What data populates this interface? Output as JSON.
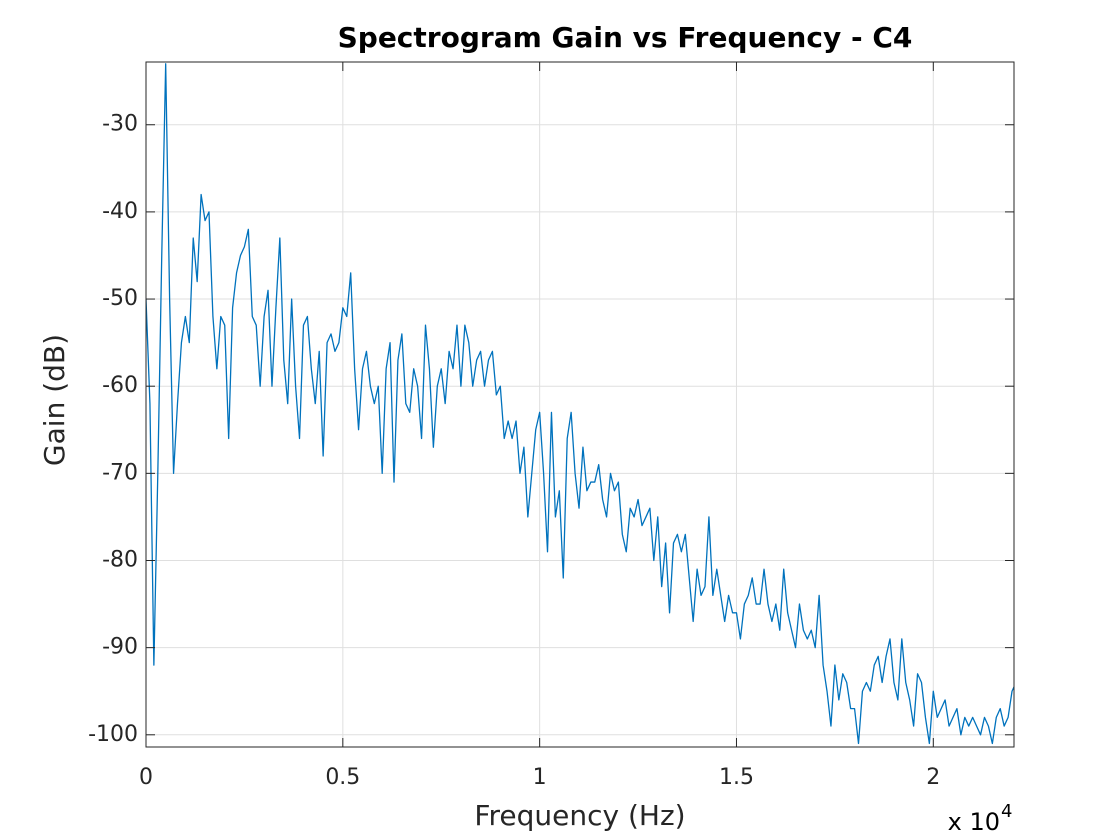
{
  "chart_data": {
    "type": "line",
    "title": "Spectrogram Gain vs Frequency - C4",
    "x_label": "Frequency (Hz)",
    "y_label": "Gain (dB)",
    "x_multiplier": {
      "base": "x 10",
      "exponent": "4"
    },
    "color": "#0072bd",
    "grid": true,
    "xlim": [
      0,
      22050
    ],
    "ylim": [
      -101.4,
      -22.8
    ],
    "xticks": [
      0,
      {
        "value": 5000,
        "label": "0.5"
      },
      {
        "value": 10000,
        "label": "1"
      },
      {
        "value": 15000,
        "label": "1.5"
      },
      {
        "value": 20000,
        "label": "2"
      }
    ],
    "yticks": [
      -100,
      -90,
      -80,
      -70,
      -60,
      -50,
      -40,
      -30
    ],
    "x": [
      0,
      100,
      200,
      300,
      400,
      500,
      600,
      700,
      800,
      900,
      1000,
      1100,
      1200,
      1300,
      1400,
      1500,
      1600,
      1700,
      1800,
      1900,
      2000,
      2100,
      2200,
      2300,
      2400,
      2500,
      2600,
      2700,
      2800,
      2900,
      3000,
      3100,
      3200,
      3300,
      3400,
      3500,
      3600,
      3700,
      3800,
      3900,
      4000,
      4100,
      4200,
      4300,
      4400,
      4500,
      4600,
      4700,
      4800,
      4900,
      5000,
      5100,
      5200,
      5300,
      5400,
      5500,
      5600,
      5700,
      5800,
      5900,
      6000,
      6100,
      6200,
      6300,
      6400,
      6500,
      6600,
      6700,
      6800,
      6900,
      7000,
      7100,
      7200,
      7300,
      7400,
      7500,
      7600,
      7700,
      7800,
      7900,
      8000,
      8100,
      8200,
      8300,
      8400,
      8500,
      8600,
      8700,
      8800,
      8900,
      9000,
      9100,
      9200,
      9300,
      9400,
      9500,
      9600,
      9700,
      9800,
      9900,
      10000,
      10100,
      10200,
      10300,
      10400,
      10500,
      10600,
      10700,
      10800,
      10900,
      11000,
      11100,
      11200,
      11300,
      11400,
      11500,
      11600,
      11700,
      11800,
      11900,
      12000,
      12100,
      12200,
      12300,
      12400,
      12500,
      12600,
      12700,
      12800,
      12900,
      13000,
      13100,
      13200,
      13300,
      13400,
      13500,
      13600,
      13700,
      13800,
      13900,
      14000,
      14100,
      14200,
      14300,
      14400,
      14500,
      14600,
      14700,
      14800,
      14900,
      15000,
      15100,
      15200,
      15300,
      15400,
      15500,
      15600,
      15700,
      15800,
      15900,
      16000,
      16100,
      16200,
      16300,
      16400,
      16500,
      16600,
      16700,
      16800,
      16900,
      17000,
      17100,
      17200,
      17300,
      17400,
      17500,
      17600,
      17700,
      17800,
      17900,
      18000,
      18100,
      18200,
      18300,
      18400,
      18500,
      18600,
      18700,
      18800,
      18900,
      19000,
      19100,
      19200,
      19300,
      19400,
      19500,
      19600,
      19700,
      19800,
      19900,
      20000,
      20100,
      20200,
      20300,
      20400,
      20500,
      20600,
      20700,
      20800,
      20900,
      21000,
      21100,
      21200,
      21300,
      21400,
      21500,
      21600,
      21700,
      21800,
      21900,
      22000,
      22050
    ],
    "values": [
      -50,
      -62,
      -92,
      -70,
      -45,
      -23,
      -50,
      -70,
      -62,
      -55,
      -52,
      -55,
      -43,
      -48,
      -38,
      -41,
      -40,
      -52,
      -58,
      -52,
      -53,
      -66,
      -51,
      -47,
      -45,
      -44,
      -42,
      -52,
      -53,
      -60,
      -52,
      -49,
      -60,
      -51,
      -43,
      -57,
      -62,
      -50,
      -60,
      -66,
      -53,
      -52,
      -58,
      -62,
      -56,
      -68,
      -55,
      -54,
      -56,
      -55,
      -51,
      -52,
      -47,
      -58,
      -65,
      -58,
      -56,
      -60,
      -62,
      -60,
      -70,
      -58,
      -55,
      -71,
      -57,
      -54,
      -62,
      -63,
      -58,
      -60,
      -66,
      -53,
      -58,
      -67,
      -60,
      -58,
      -62,
      -56,
      -58,
      -53,
      -60,
      -53,
      -55,
      -60,
      -57,
      -56,
      -60,
      -57,
      -56,
      -61,
      -60,
      -66,
      -64,
      -66,
      -64,
      -70,
      -67,
      -75,
      -70,
      -65,
      -63,
      -70,
      -79,
      -63,
      -75,
      -72,
      -82,
      -66,
      -63,
      -70,
      -74,
      -67,
      -72,
      -71,
      -71,
      -69,
      -73,
      -75,
      -70,
      -72,
      -71,
      -77,
      -79,
      -74,
      -75,
      -73,
      -76,
      -75,
      -74,
      -80,
      -75,
      -83,
      -78,
      -86,
      -78,
      -77,
      -79,
      -77,
      -82,
      -87,
      -81,
      -84,
      -83,
      -75,
      -84,
      -81,
      -84,
      -87,
      -84,
      -86,
      -86,
      -89,
      -85,
      -84,
      -82,
      -85,
      -85,
      -81,
      -85,
      -87,
      -85,
      -88,
      -81,
      -86,
      -88,
      -90,
      -85,
      -88,
      -89,
      -88,
      -90,
      -84,
      -92,
      -95,
      -99,
      -92,
      -96,
      -93,
      -94,
      -97,
      -97,
      -101,
      -95,
      -94,
      -95,
      -92,
      -91,
      -94,
      -91,
      -89,
      -94,
      -96,
      -89,
      -94,
      -96,
      -99,
      -93,
      -94,
      -98,
      -101,
      -95,
      -98,
      -97,
      -96,
      -99,
      -98,
      -97,
      -100,
      -98,
      -99,
      -98,
      -99,
      -100,
      -98,
      -99,
      -101,
      -98,
      -97,
      -99,
      -98,
      -95,
      -94.5
    ]
  }
}
